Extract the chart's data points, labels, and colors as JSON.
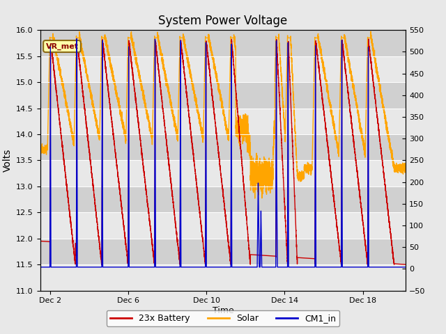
{
  "title": "System Power Voltage",
  "xlabel": "Time",
  "ylabel_left": "Volts",
  "ylim_left": [
    11.0,
    16.0
  ],
  "ylim_right": [
    -50,
    550
  ],
  "yticks_left": [
    11.0,
    11.5,
    12.0,
    12.5,
    13.0,
    13.5,
    14.0,
    14.5,
    15.0,
    15.5,
    16.0
  ],
  "yticks_right": [
    -50,
    0,
    50,
    100,
    150,
    200,
    250,
    300,
    350,
    400,
    450,
    500,
    550
  ],
  "xtick_labels": [
    "Dec 2",
    "Dec 6",
    "Dec 10",
    "Dec 14",
    "Dec 18"
  ],
  "xtick_positions": [
    2,
    6,
    10,
    14,
    18
  ],
  "xrange": [
    1.5,
    20.2
  ],
  "fig_bg_color": "#e8e8e8",
  "plot_bg_color": "#f0f0f0",
  "vr_met_box_color": "#ffffaa",
  "vr_met_text_color": "#8b0000",
  "vr_met_border_color": "#8b6914",
  "legend_items": [
    "23x Battery",
    "Solar",
    "CM1_in"
  ],
  "battery_color": "#cc0000",
  "solar_color": "#ffa500",
  "cm1_color": "#0000cc",
  "linewidth": 1.0,
  "title_fontsize": 12,
  "band_color_light": "#e8e8e8",
  "band_color_dark": "#d0d0d0",
  "cycles": [
    [
      2.0,
      1.3
    ],
    [
      3.35,
      1.3
    ],
    [
      4.65,
      1.35
    ],
    [
      6.0,
      1.35
    ],
    [
      7.35,
      1.3
    ],
    [
      8.65,
      1.3
    ],
    [
      9.95,
      1.3
    ],
    [
      11.25,
      1.0
    ],
    [
      13.55,
      0.6
    ],
    [
      14.15,
      0.5
    ],
    [
      15.55,
      1.35
    ],
    [
      16.9,
      1.35
    ],
    [
      18.25,
      1.35
    ]
  ],
  "battery_start": 11.95,
  "battery_min": 11.5,
  "battery_peak": 15.8,
  "cm1_base": 11.45,
  "cm1_peak": 15.85,
  "solar_base_early": 13.7,
  "solar_base_mid": 13.2,
  "solar_base_late": 13.35,
  "solar_peak": 15.9
}
